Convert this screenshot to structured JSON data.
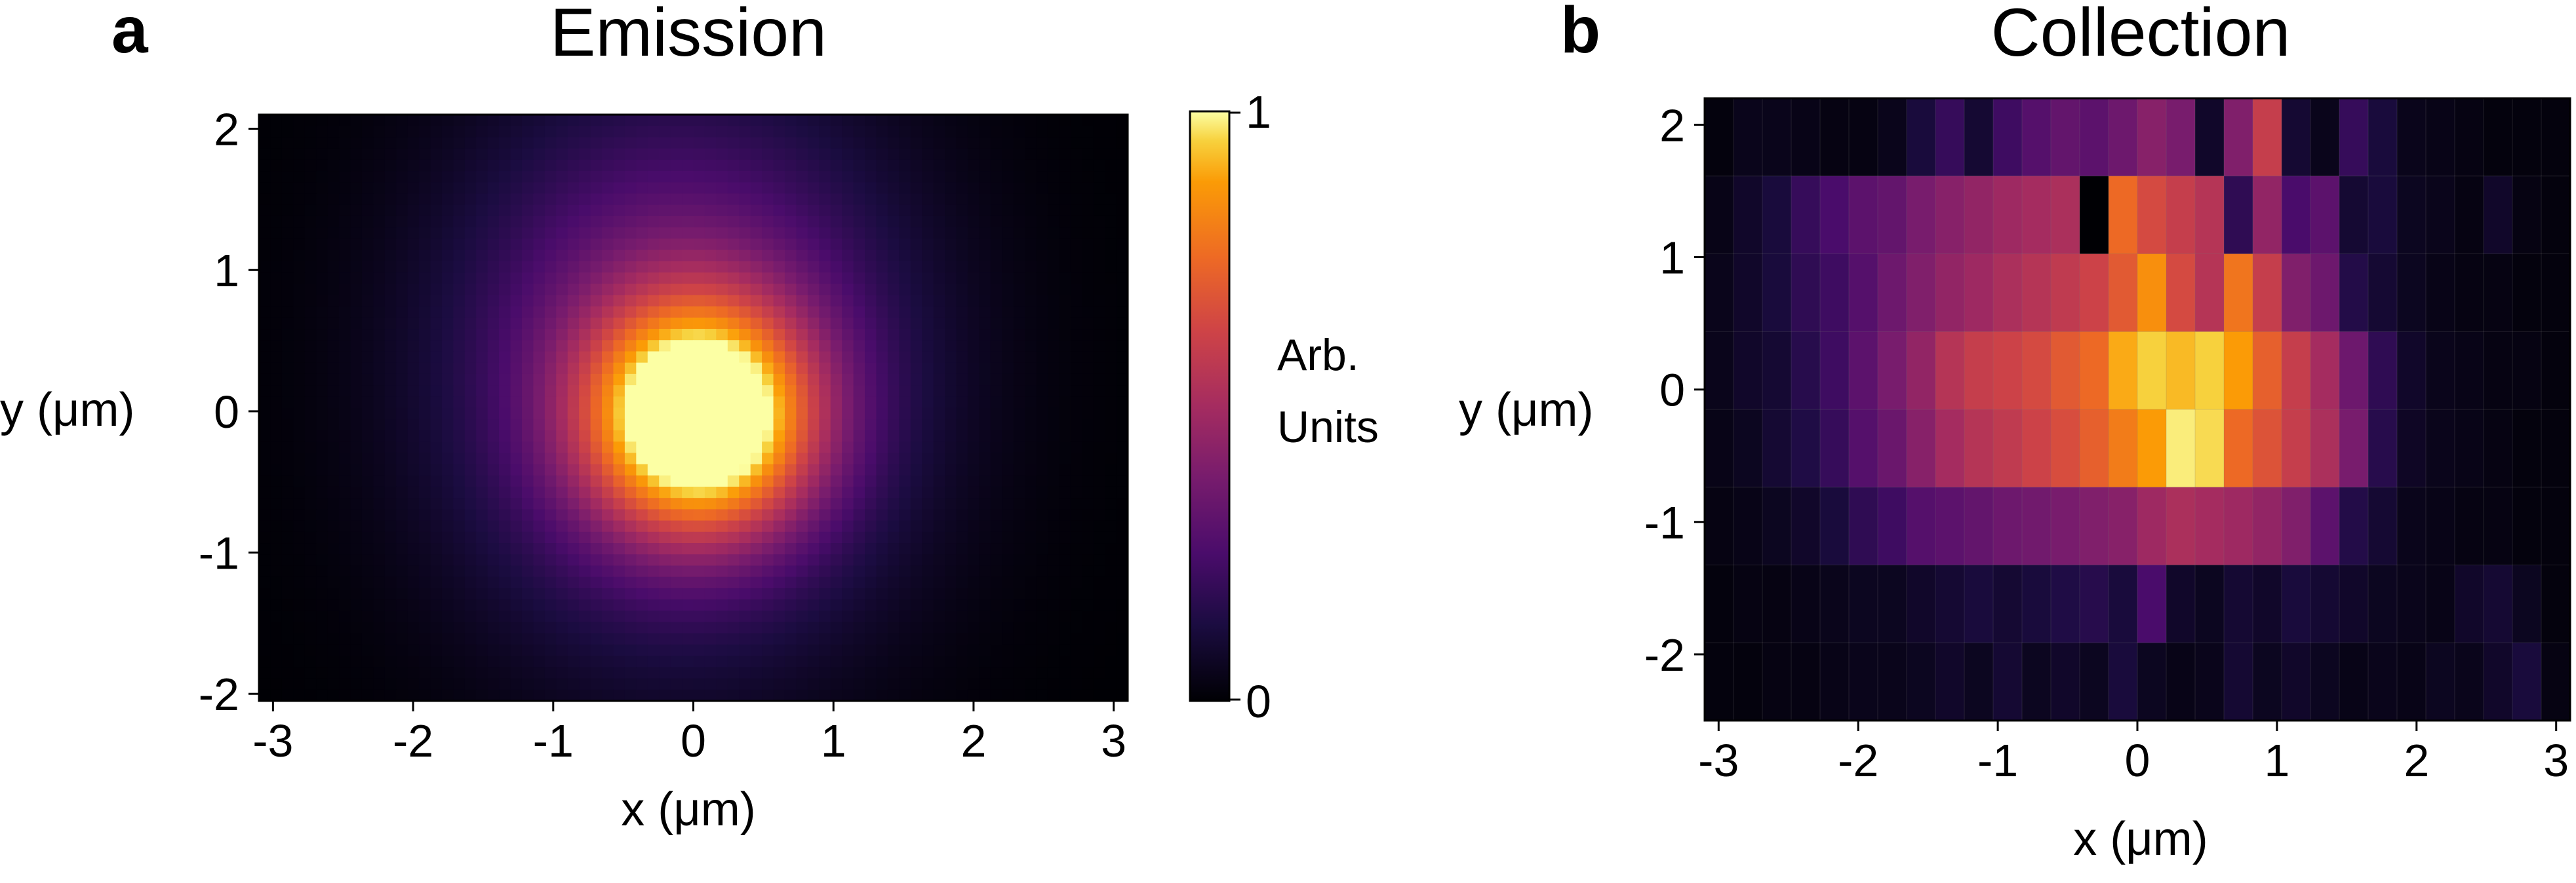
{
  "chart_data": [
    {
      "type": "heatmap",
      "panel_label": "a",
      "title": "Emission",
      "xlabel": "x (μm)",
      "ylabel": "y (μm)",
      "xlim": [
        -3.1,
        3.1
      ],
      "ylim": [
        -2.05,
        2.1
      ],
      "xticks": [
        "-3",
        "-2",
        "-1",
        "0",
        "1",
        "2",
        "3"
      ],
      "yticks": [
        "2",
        "1",
        "0",
        "-1",
        "-2"
      ],
      "colormap": "inferno",
      "grid": false,
      "peak": {
        "x": 0.05,
        "y": -0.05,
        "value": 1.0
      },
      "model": [
        {
          "component": "core",
          "amplitude": 0.98,
          "center": [
            0.05,
            -0.05
          ],
          "sigma": [
            0.55,
            0.55
          ]
        },
        {
          "component": "halo",
          "amplitude": 0.42,
          "center": [
            -0.1,
            0.3
          ],
          "sigma": [
            1.1,
            1.3
          ]
        }
      ],
      "colorbar": {
        "label_lines": [
          "Arb.",
          "Units"
        ],
        "min": 0,
        "max": 1,
        "ticks": [
          "1",
          "0"
        ]
      }
    },
    {
      "type": "heatmap",
      "panel_label": "b",
      "title": "Collection",
      "xlabel": "x (μm)",
      "ylabel": "y (μm)",
      "xlim": [
        -3.1,
        3.1
      ],
      "ylim": [
        -2.5,
        2.2
      ],
      "xticks": [
        "-3",
        "-2",
        "-1",
        "0",
        "1",
        "2",
        "3"
      ],
      "yticks": [
        "2",
        "1",
        "0",
        "-1",
        "-2"
      ],
      "colormap": "inferno",
      "grid": false,
      "x_bins": 30,
      "y_bins": 8,
      "rows_top_to_bottom": [
        [
          0.02,
          0.05,
          0.05,
          0.04,
          0.03,
          0.03,
          0.05,
          0.12,
          0.2,
          0.1,
          0.22,
          0.28,
          0.32,
          0.3,
          0.35,
          0.42,
          0.38,
          0.08,
          0.4,
          0.6,
          0.1,
          0.05,
          0.2,
          0.12,
          0.05,
          0.04,
          0.03,
          0.02,
          0.02,
          0.02
        ],
        [
          0.04,
          0.08,
          0.12,
          0.2,
          0.25,
          0.3,
          0.32,
          0.38,
          0.42,
          0.45,
          0.48,
          0.5,
          0.52,
          0.0,
          0.75,
          0.65,
          0.6,
          0.55,
          0.18,
          0.45,
          0.25,
          0.3,
          0.1,
          0.12,
          0.06,
          0.05,
          0.03,
          0.08,
          0.03,
          0.02
        ],
        [
          0.05,
          0.08,
          0.12,
          0.18,
          0.22,
          0.28,
          0.35,
          0.4,
          0.45,
          0.48,
          0.52,
          0.55,
          0.58,
          0.62,
          0.7,
          0.85,
          0.65,
          0.55,
          0.78,
          0.6,
          0.4,
          0.35,
          0.15,
          0.1,
          0.06,
          0.04,
          0.03,
          0.03,
          0.02,
          0.02
        ],
        [
          0.05,
          0.08,
          0.1,
          0.16,
          0.22,
          0.3,
          0.38,
          0.45,
          0.55,
          0.6,
          0.62,
          0.65,
          0.7,
          0.75,
          0.9,
          0.95,
          0.92,
          0.95,
          0.88,
          0.72,
          0.6,
          0.5,
          0.35,
          0.18,
          0.08,
          0.05,
          0.04,
          0.03,
          0.03,
          0.02
        ],
        [
          0.04,
          0.06,
          0.1,
          0.14,
          0.2,
          0.28,
          0.34,
          0.42,
          0.5,
          0.55,
          0.58,
          0.62,
          0.66,
          0.72,
          0.8,
          0.88,
          0.98,
          0.96,
          0.75,
          0.68,
          0.6,
          0.52,
          0.38,
          0.16,
          0.07,
          0.05,
          0.04,
          0.03,
          0.02,
          0.02
        ],
        [
          0.03,
          0.04,
          0.06,
          0.08,
          0.12,
          0.18,
          0.22,
          0.28,
          0.3,
          0.32,
          0.35,
          0.36,
          0.38,
          0.4,
          0.42,
          0.48,
          0.52,
          0.5,
          0.48,
          0.45,
          0.4,
          0.3,
          0.15,
          0.1,
          0.05,
          0.04,
          0.03,
          0.03,
          0.02,
          0.02
        ],
        [
          0.02,
          0.03,
          0.03,
          0.04,
          0.05,
          0.06,
          0.06,
          0.08,
          0.1,
          0.12,
          0.1,
          0.12,
          0.14,
          0.16,
          0.12,
          0.25,
          0.08,
          0.06,
          0.1,
          0.08,
          0.12,
          0.1,
          0.08,
          0.06,
          0.05,
          0.04,
          0.08,
          0.1,
          0.06,
          0.02
        ],
        [
          0.02,
          0.02,
          0.03,
          0.03,
          0.04,
          0.05,
          0.05,
          0.06,
          0.08,
          0.06,
          0.1,
          0.06,
          0.08,
          0.06,
          0.12,
          0.06,
          0.04,
          0.05,
          0.1,
          0.06,
          0.08,
          0.06,
          0.04,
          0.05,
          0.04,
          0.06,
          0.05,
          0.08,
          0.12,
          0.03
        ]
      ]
    }
  ]
}
